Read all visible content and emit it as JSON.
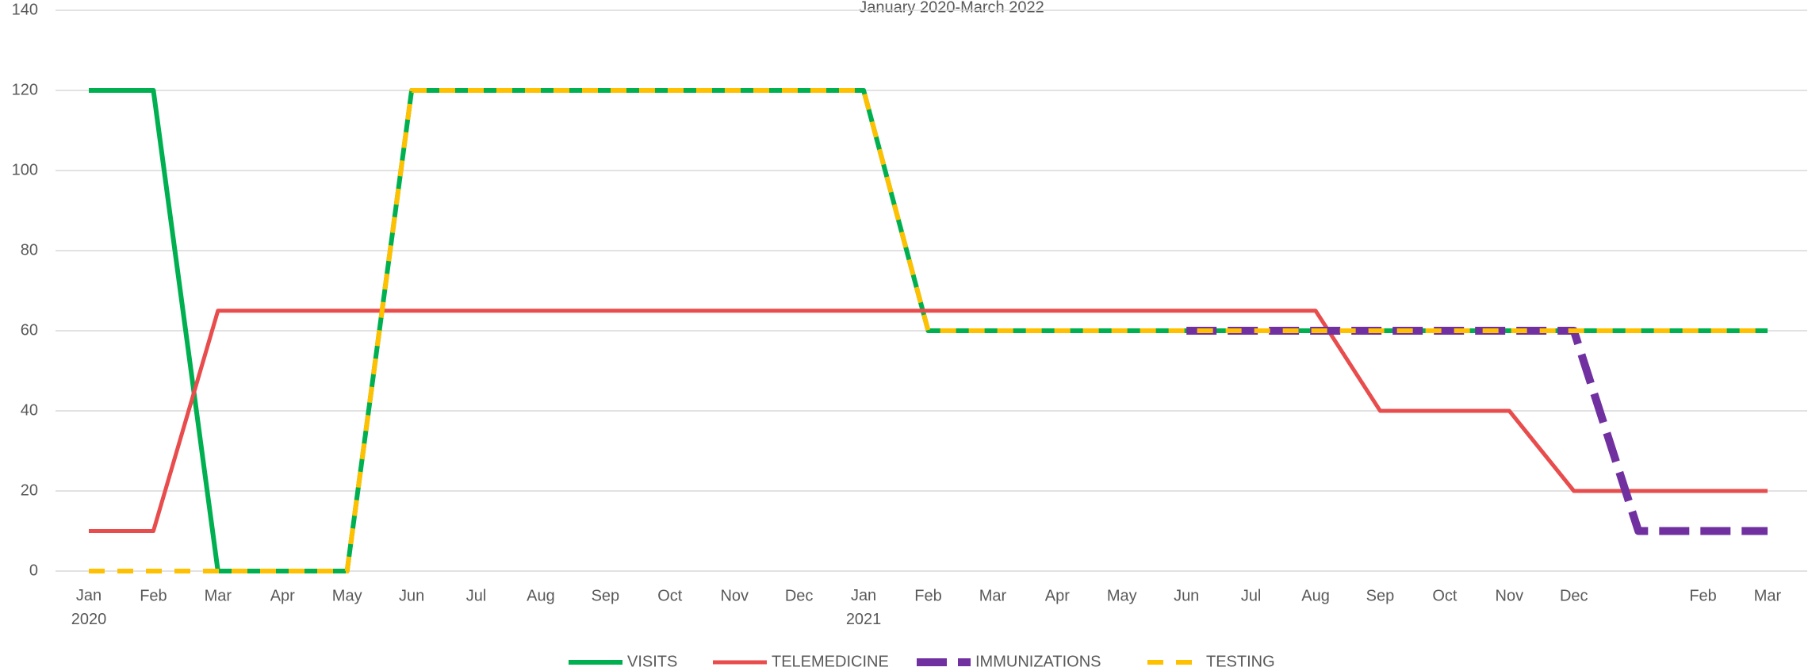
{
  "chart_data": {
    "type": "line",
    "title": "January 2020-March 2022",
    "categories": [
      "Jan 2020",
      "Feb",
      "Mar",
      "Apr",
      "May",
      "Jun",
      "Jul",
      "Aug",
      "Sep",
      "Oct",
      "Nov",
      "Dec",
      "Jan 2021",
      "Feb",
      "Mar",
      "Apr",
      "May",
      "Jun",
      "Jul",
      "Aug",
      "Sep",
      "Oct",
      "Nov",
      "Dec",
      null,
      "Feb",
      "Mar"
    ],
    "series": [
      {
        "name": "VISITS",
        "color": "#00b050",
        "values": [
          120,
          120,
          0,
          0,
          0,
          120,
          120,
          120,
          120,
          120,
          120,
          120,
          120,
          60,
          60,
          60,
          60,
          60,
          60,
          60,
          60,
          60,
          60,
          60,
          60,
          60,
          60
        ]
      },
      {
        "name": "TELEMEDICINE",
        "color": "#e84c4c",
        "values": [
          10,
          10,
          65,
          65,
          65,
          65,
          65,
          65,
          65,
          65,
          65,
          65,
          65,
          65,
          65,
          65,
          65,
          65,
          65,
          65,
          40,
          40,
          40,
          20,
          20,
          20,
          20
        ]
      },
      {
        "name": "IMMUNIZATIONS",
        "color": "#7030a0",
        "values": [
          null,
          null,
          null,
          null,
          null,
          null,
          null,
          null,
          null,
          null,
          null,
          null,
          null,
          null,
          null,
          null,
          null,
          60,
          60,
          60,
          60,
          60,
          60,
          60,
          10,
          10,
          10
        ]
      },
      {
        "name": "TESTING",
        "color": "#ffc000",
        "values": [
          0,
          0,
          0,
          0,
          0,
          120,
          120,
          120,
          120,
          120,
          120,
          120,
          120,
          60,
          60,
          60,
          60,
          60,
          60,
          60,
          60,
          60,
          60,
          60,
          60,
          60,
          60
        ]
      }
    ],
    "ylim": [
      0,
      140
    ],
    "yticks": [
      0,
      20,
      40,
      60,
      80,
      100,
      120,
      140
    ],
    "grid": true,
    "legend": "bottom"
  }
}
